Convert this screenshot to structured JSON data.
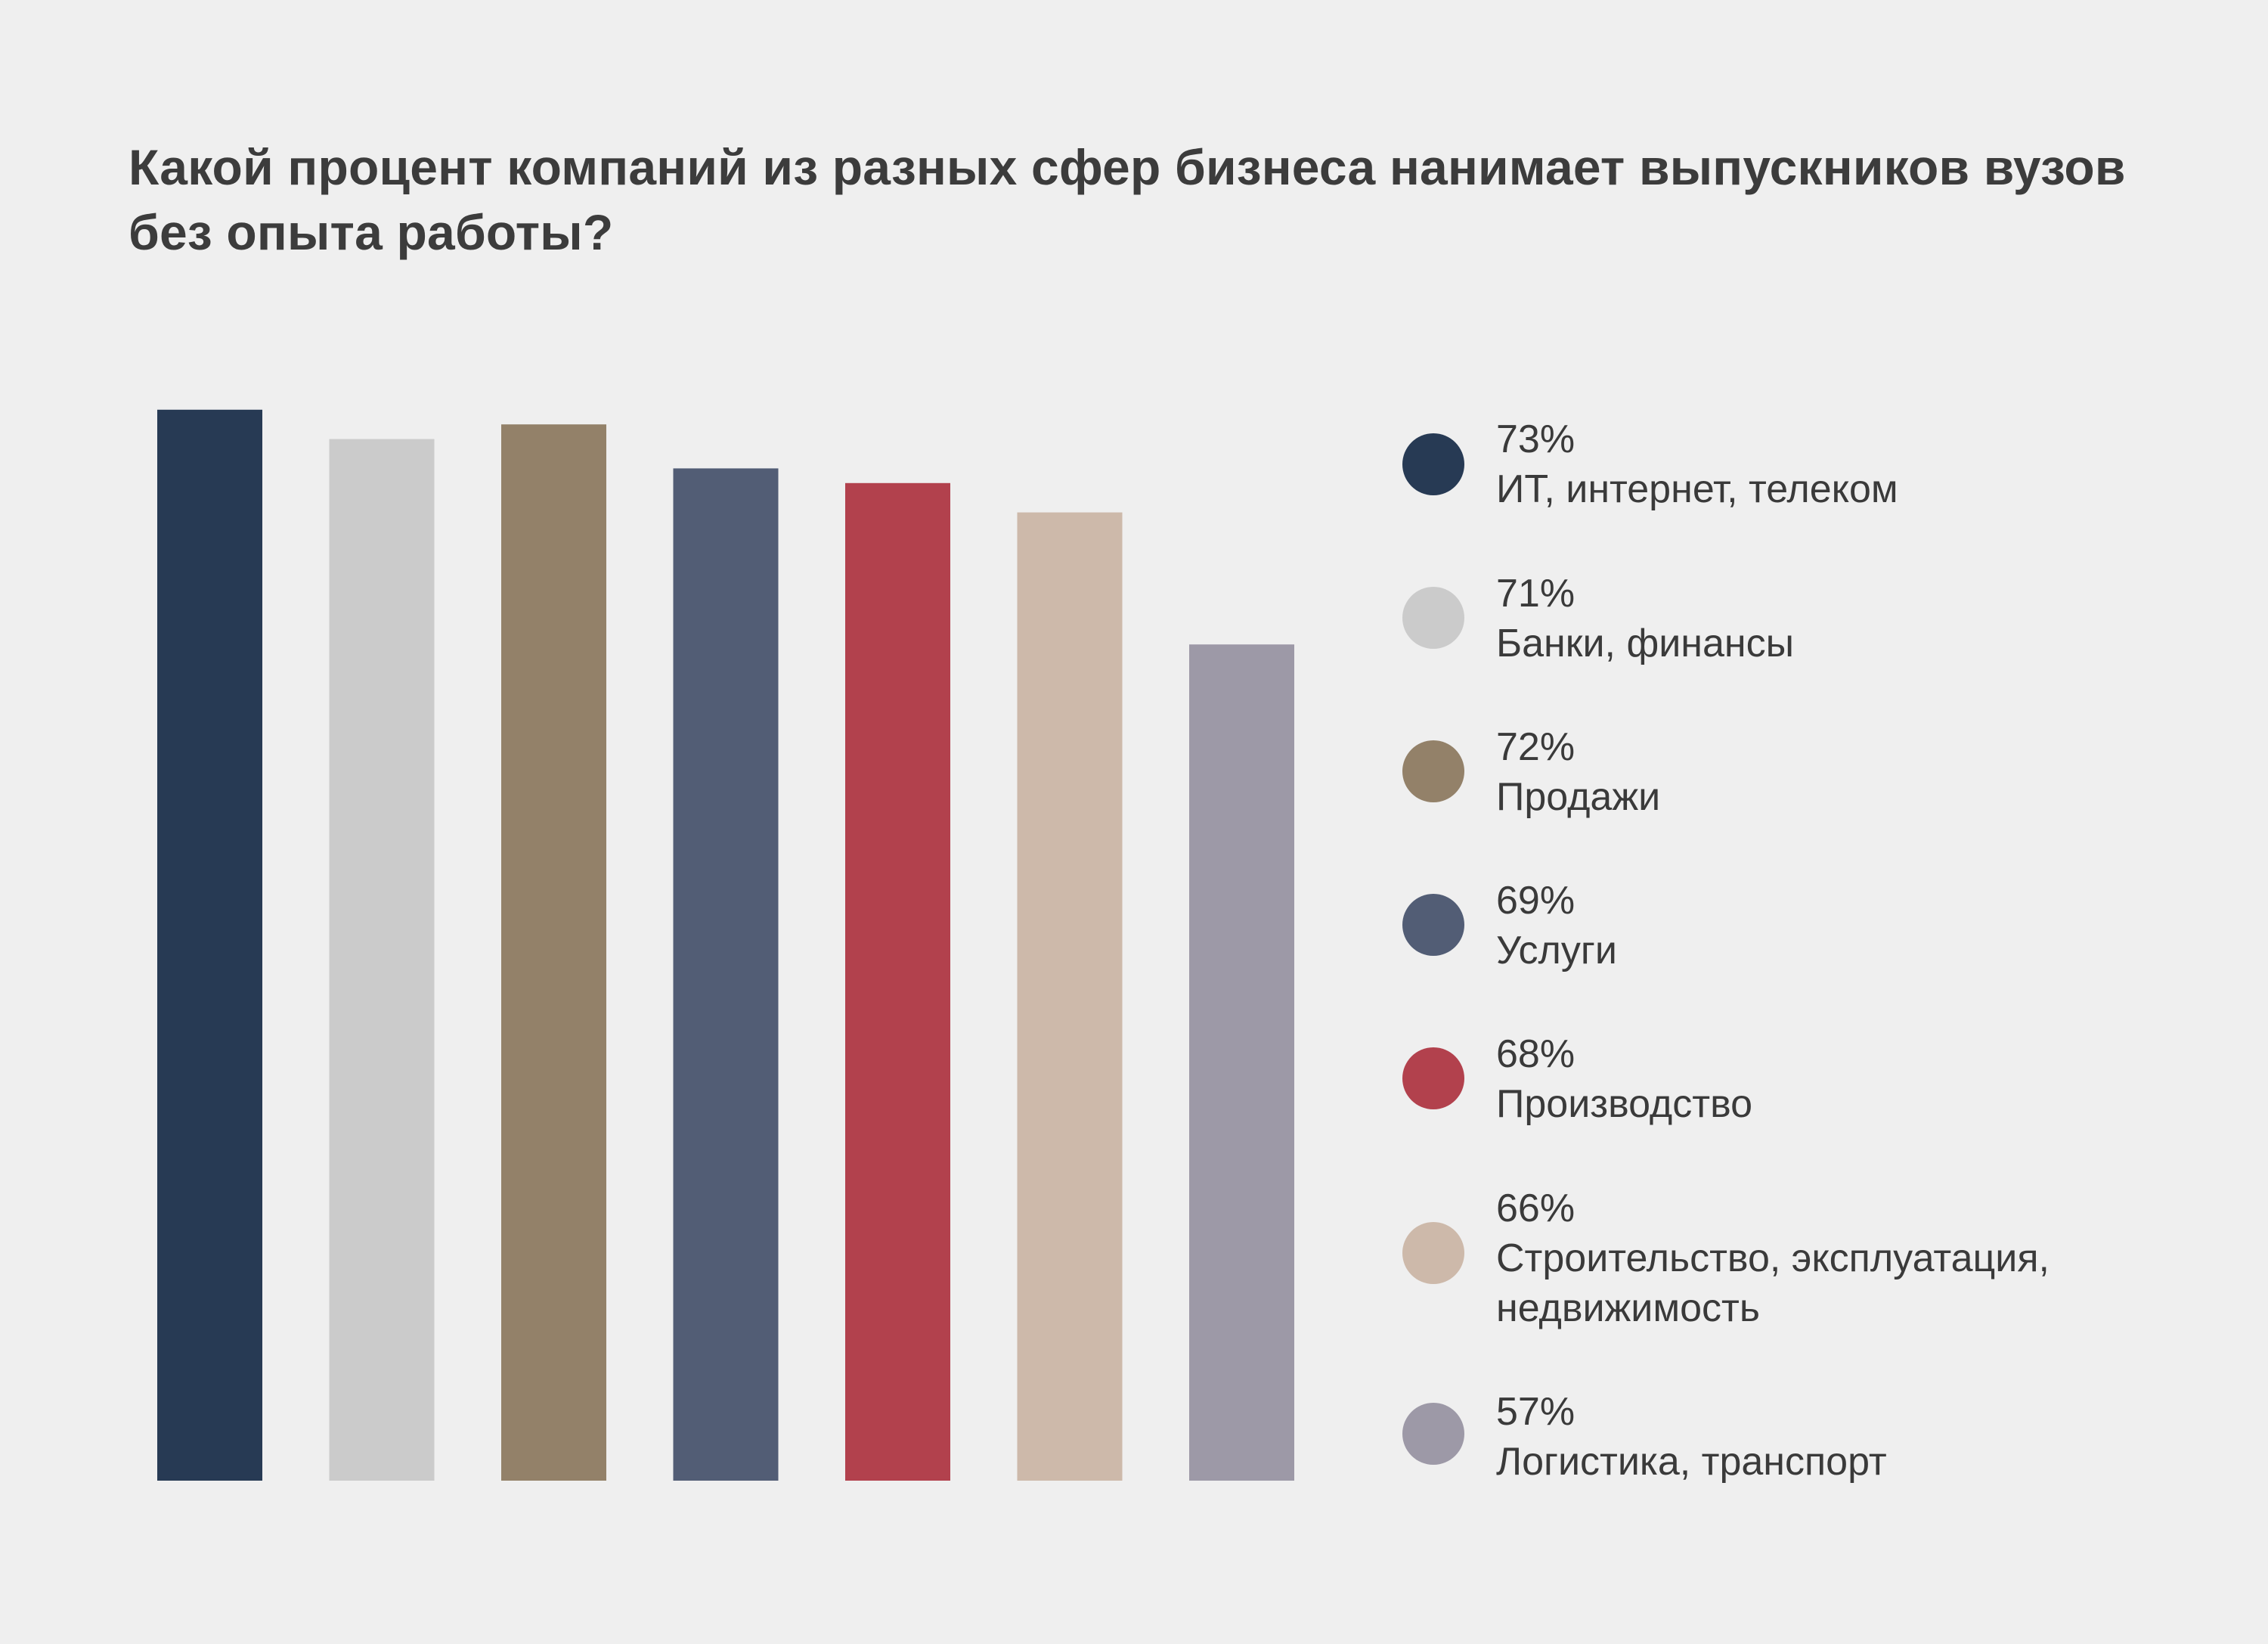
{
  "chart_data": {
    "type": "bar",
    "title": "Какой процент компаний из разных сфер бизнеса нанимает выпускников вузов без опыта работы?",
    "categories": [
      "ИТ, интернет, телеком",
      "Банки, финансы",
      "Продажи",
      "Услуги",
      "Производство",
      "Строительство, эксплуатация, недвижимость",
      "Логистика, транспорт"
    ],
    "values": [
      73,
      71,
      72,
      69,
      68,
      66,
      57
    ],
    "value_labels": [
      "73%",
      "71%",
      "72%",
      "69%",
      "68%",
      "66%",
      "57%"
    ],
    "colors": [
      "#273a54",
      "#cbcbcb",
      "#938169",
      "#525d75",
      "#b2414d",
      "#cdb9aa",
      "#9d99a7"
    ],
    "xlabel": "",
    "ylabel": "",
    "grid": false,
    "legend": "right"
  }
}
